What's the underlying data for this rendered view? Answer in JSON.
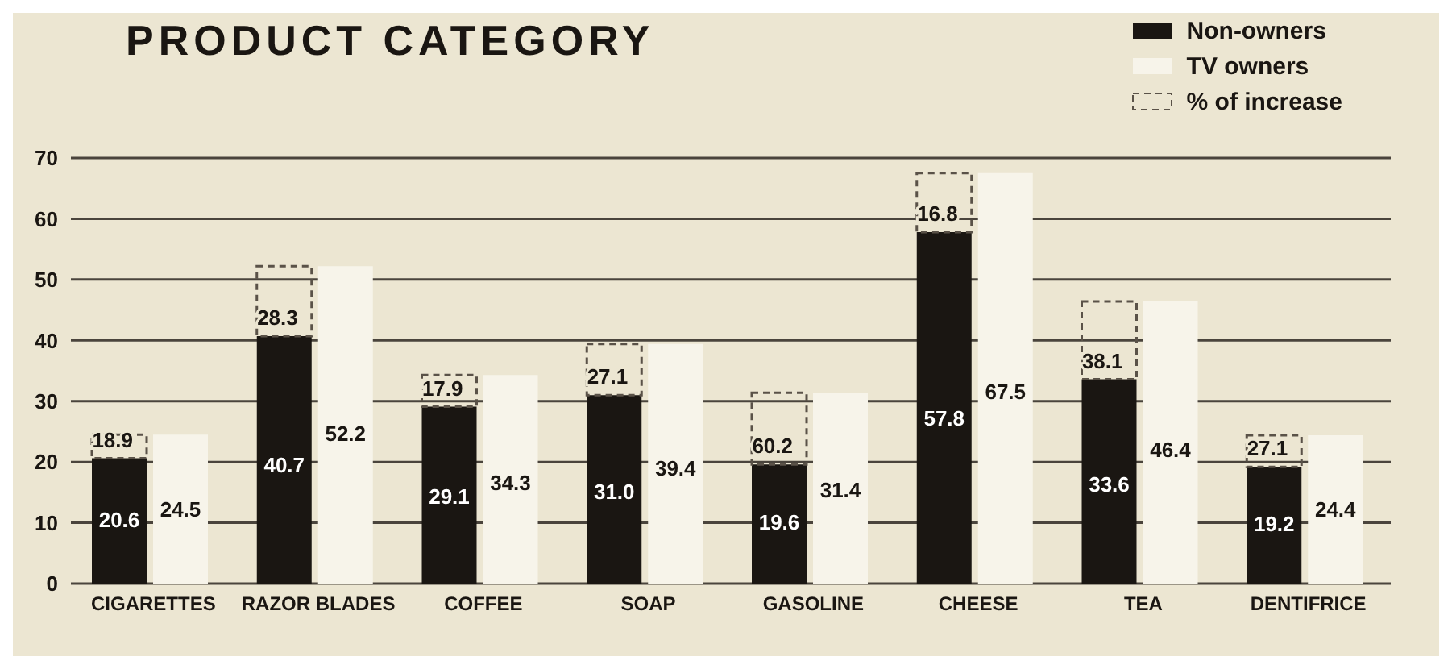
{
  "chart_data": {
    "type": "bar",
    "title": "PRODUCT CATEGORY",
    "categories": [
      "CIGARETTES",
      "RAZOR BLADES",
      "COFFEE",
      "SOAP",
      "GASOLINE",
      "CHEESE",
      "TEA",
      "DENTIFRICE"
    ],
    "series": [
      {
        "name": "Non-owners",
        "color": "#1a1612",
        "values": [
          20.6,
          40.7,
          29.1,
          31.0,
          19.6,
          57.8,
          33.6,
          19.2
        ],
        "value_labels": [
          "20.6",
          "40.7",
          "29.1",
          "31.0",
          "19.6",
          "57.8",
          "33.6",
          "19.2"
        ]
      },
      {
        "name": "TV owners",
        "color": "#f7f4ea",
        "values": [
          24.5,
          52.2,
          34.3,
          39.4,
          31.4,
          67.5,
          46.4,
          24.4
        ],
        "value_labels": [
          "24.5",
          "52.2",
          "34.3",
          "39.4",
          "31.4",
          "67.5",
          "46.4",
          "24.4"
        ]
      },
      {
        "name": "% of increase",
        "color": "#5a5248",
        "line_style": "dashed",
        "base": [
          20.6,
          40.7,
          29.1,
          31.0,
          19.6,
          57.8,
          33.6,
          19.2
        ],
        "values": [
          3.9,
          11.5,
          5.2,
          8.4,
          11.8,
          9.7,
          12.8,
          5.2
        ]
      }
    ],
    "annotations": [
      "18.9",
      "28.3",
      "17.9",
      "27.1",
      "60.2",
      "16.8",
      "38.1",
      "27.1"
    ],
    "ylim": [
      0,
      70
    ],
    "yticks": [
      0,
      10,
      20,
      30,
      40,
      50,
      60,
      70
    ],
    "grid": "y",
    "legend": "top right"
  }
}
